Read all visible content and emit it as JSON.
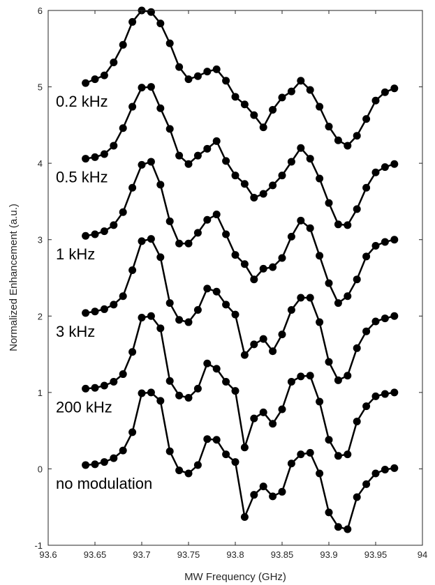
{
  "chart_data": {
    "type": "line",
    "title": "",
    "xlabel": "MW Frequency (GHz)",
    "ylabel": "Normalized Enhancement (a.u.)",
    "xlim": [
      93.6,
      94.0
    ],
    "ylim": [
      -1,
      6
    ],
    "xticks": [
      "93.6",
      "93.65",
      "93.7",
      "93.75",
      "93.8",
      "93.85",
      "93.9",
      "93.95",
      "94"
    ],
    "yticks": [
      "-1",
      "0",
      "1",
      "2",
      "3",
      "4",
      "5",
      "6"
    ],
    "grid": false,
    "legend": "none",
    "line_color": "#000000",
    "x": [
      93.64,
      93.65,
      93.66,
      93.67,
      93.68,
      93.69,
      93.7,
      93.71,
      93.72,
      93.73,
      93.74,
      93.75,
      93.76,
      93.77,
      93.78,
      93.79,
      93.8,
      93.81,
      93.82,
      93.83,
      93.84,
      93.85,
      93.86,
      93.87,
      93.88,
      93.89,
      93.9,
      93.91,
      93.92,
      93.93,
      93.94,
      93.95,
      93.96,
      93.97
    ],
    "series": [
      {
        "name": "0.2 kHz",
        "values": [
          5.05,
          5.1,
          5.15,
          5.32,
          5.55,
          5.85,
          6.0,
          5.98,
          5.83,
          5.57,
          5.26,
          5.1,
          5.14,
          5.2,
          5.23,
          5.08,
          4.87,
          4.77,
          4.63,
          4.47,
          4.7,
          4.86,
          4.94,
          5.08,
          4.96,
          4.74,
          4.48,
          4.3,
          4.23,
          4.36,
          4.58,
          4.82,
          4.93,
          4.98
        ]
      },
      {
        "name": "0.5 kHz",
        "values": [
          4.06,
          4.08,
          4.12,
          4.23,
          4.46,
          4.74,
          4.99,
          5.0,
          4.72,
          4.45,
          4.1,
          3.99,
          4.1,
          4.19,
          4.29,
          4.03,
          3.84,
          3.73,
          3.55,
          3.6,
          3.71,
          3.84,
          4.02,
          4.2,
          4.06,
          3.8,
          3.48,
          3.2,
          3.19,
          3.4,
          3.68,
          3.88,
          3.95,
          3.99
        ]
      },
      {
        "name": "1 kHz",
        "values": [
          3.05,
          3.07,
          3.11,
          3.19,
          3.36,
          3.68,
          3.98,
          4.02,
          3.72,
          3.24,
          2.95,
          2.95,
          3.09,
          3.26,
          3.33,
          3.07,
          2.8,
          2.68,
          2.48,
          2.62,
          2.64,
          2.76,
          3.04,
          3.25,
          3.15,
          2.79,
          2.43,
          2.17,
          2.26,
          2.48,
          2.78,
          2.92,
          2.97,
          3.0
        ]
      },
      {
        "name": "3 kHz",
        "values": [
          2.04,
          2.06,
          2.09,
          2.15,
          2.26,
          2.6,
          2.98,
          3.01,
          2.77,
          2.17,
          1.95,
          1.92,
          2.08,
          2.36,
          2.32,
          2.15,
          2.02,
          1.49,
          1.63,
          1.7,
          1.54,
          1.76,
          2.08,
          2.24,
          2.24,
          1.92,
          1.4,
          1.16,
          1.22,
          1.58,
          1.8,
          1.93,
          1.97,
          2.0
        ]
      },
      {
        "name": "200 kHz",
        "values": [
          1.05,
          1.06,
          1.09,
          1.14,
          1.24,
          1.53,
          1.98,
          2.0,
          1.84,
          1.15,
          0.96,
          0.93,
          1.05,
          1.38,
          1.31,
          1.14,
          1.02,
          0.28,
          0.66,
          0.74,
          0.59,
          0.78,
          1.14,
          1.21,
          1.22,
          0.88,
          0.38,
          0.17,
          0.19,
          0.62,
          0.82,
          0.95,
          0.98,
          1.0
        ]
      },
      {
        "name": "no modulation",
        "values": [
          0.05,
          0.06,
          0.09,
          0.14,
          0.24,
          0.48,
          0.99,
          1.0,
          0.89,
          0.23,
          -0.02,
          -0.06,
          0.05,
          0.39,
          0.38,
          0.19,
          0.09,
          -0.63,
          -0.34,
          -0.23,
          -0.36,
          -0.3,
          0.07,
          0.19,
          0.21,
          -0.06,
          -0.57,
          -0.76,
          -0.79,
          -0.37,
          -0.2,
          -0.06,
          -0.01,
          0.01
        ]
      }
    ]
  }
}
